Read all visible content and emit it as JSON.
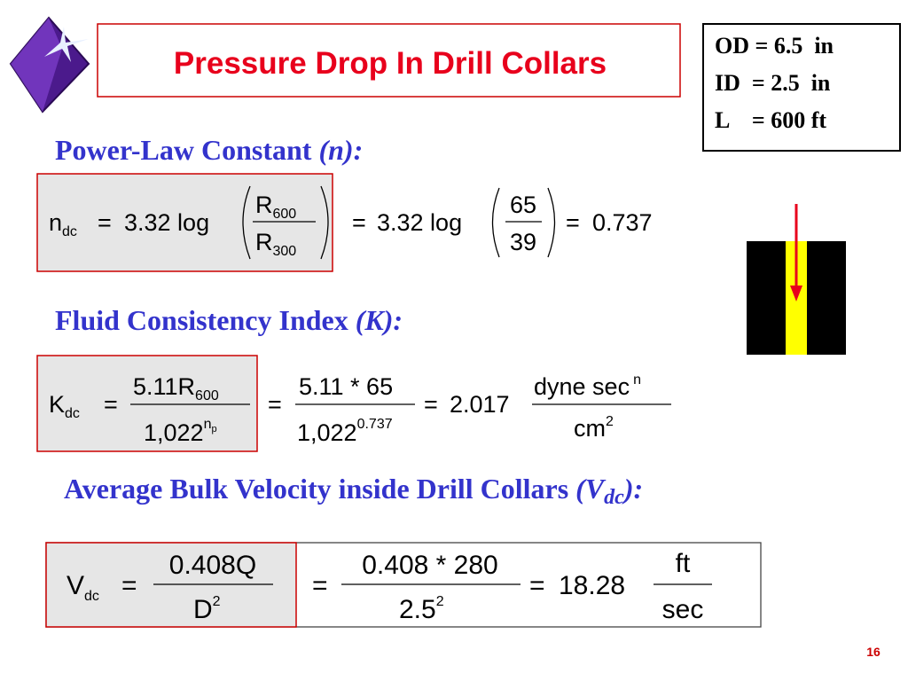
{
  "title": "Pressure Drop In Drill Collars",
  "given": [
    "OD = 6.5  in",
    "ID  = 2.5  in",
    "L    = 600 ft"
  ],
  "power_law": {
    "heading": "Power-Law Constant",
    "heading_symbol": "(n):",
    "lhs": "n",
    "lhs_sub": "dc",
    "eq1": "=",
    "coef1": "3.32 log",
    "num1": "R",
    "num1_sub": "600",
    "den1": "R",
    "den1_sub": "300",
    "eq2": "=",
    "coef2": "3.32 log",
    "num2": "65",
    "den2": "39",
    "eq3": "=",
    "result": "0.737"
  },
  "consistency": {
    "heading": "Fluid Consistency Index",
    "heading_symbol": "(K):",
    "lhs": "K",
    "lhs_sub": "dc",
    "eq1": "=",
    "num1": "5.11R",
    "num1_sub": "600",
    "den1": "1,022",
    "den1_sup": "n",
    "den1_sup_sub": "p",
    "eq2": "=",
    "num2": "5.11 * 65",
    "den2": "1,022",
    "den2_sup": "0.737",
    "eq3": "=",
    "result": "2.017",
    "unit_num": "dyne sec",
    "unit_num_sup": "n",
    "unit_den": "cm",
    "unit_den_sup": "2"
  },
  "velocity": {
    "heading": "Average Bulk Velocity inside Drill Collars",
    "heading_symbol": "(V",
    "heading_sub": "dc",
    "heading_end": "):",
    "lhs": "V",
    "lhs_sub": "dc",
    "eq1": "=",
    "num1": "0.408Q",
    "den1": "D",
    "den1_sup": "2",
    "eq2": "=",
    "num2": "0.408 * 280",
    "den2": "2.5",
    "den2_sup": "2",
    "eq3": "=",
    "result": "18.28",
    "unit_num": "ft",
    "unit_den": "sec"
  },
  "page_number": "16"
}
